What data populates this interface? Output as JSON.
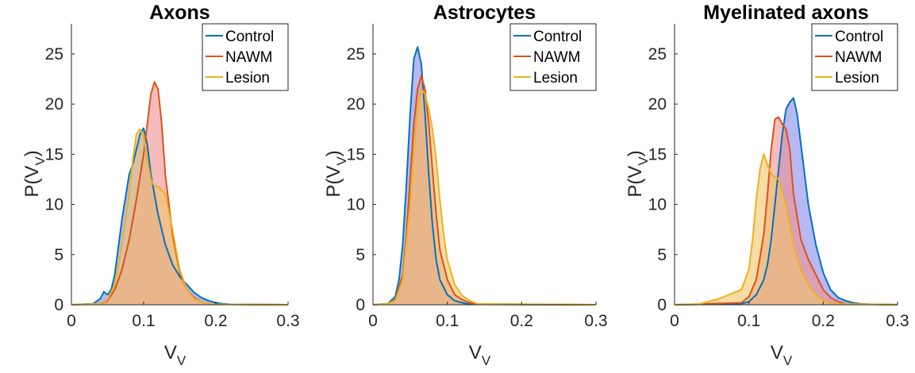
{
  "chart_data": [
    {
      "type": "area",
      "title": "Axons",
      "xlabel": "V",
      "xlabel_sub": "V",
      "ylabel": "P(V",
      "ylabel_sub": "V",
      "ylabel_close": ")",
      "xlim": [
        0,
        0.3
      ],
      "ylim": [
        0,
        28
      ],
      "xticks": [
        "0",
        "0.1",
        "0.2",
        "0.3"
      ],
      "yticks": [
        "0",
        "5",
        "10",
        "15",
        "20",
        "25"
      ],
      "legend_position": "top-right",
      "series": [
        {
          "name": "Control",
          "color": "#0072BD",
          "fill": "#8888ee",
          "x": [
            0,
            0.03,
            0.04,
            0.045,
            0.05,
            0.055,
            0.06,
            0.07,
            0.08,
            0.085,
            0.09,
            0.095,
            0.1,
            0.105,
            0.11,
            0.12,
            0.13,
            0.14,
            0.15,
            0.16,
            0.17,
            0.18,
            0.19,
            0.2,
            0.21,
            0.22,
            0.3
          ],
          "y": [
            0,
            0.1,
            0.6,
            1.3,
            1.0,
            1.5,
            3.0,
            8.5,
            13.0,
            14.0,
            15.5,
            17.0,
            17.6,
            16.0,
            13.0,
            9.0,
            6.0,
            4.0,
            2.8,
            2.0,
            1.2,
            0.7,
            0.4,
            0.2,
            0.1,
            0.05,
            0
          ]
        },
        {
          "name": "NAWM",
          "color": "#D95319",
          "fill": "#f08f8f",
          "x": [
            0,
            0.04,
            0.05,
            0.06,
            0.07,
            0.08,
            0.09,
            0.1,
            0.105,
            0.11,
            0.115,
            0.12,
            0.125,
            0.13,
            0.14,
            0.15,
            0.16,
            0.17,
            0.18,
            0.19,
            0.2,
            0.3
          ],
          "y": [
            0,
            0.1,
            0.4,
            1.5,
            3.5,
            6.5,
            10.5,
            15.0,
            18.0,
            21.0,
            22.2,
            21.5,
            18.0,
            13.0,
            7.0,
            3.2,
            1.5,
            0.7,
            0.3,
            0.1,
            0.05,
            0
          ]
        },
        {
          "name": "Lesion",
          "color": "#EDB120",
          "fill": "#f2c56a",
          "x": [
            0,
            0.04,
            0.05,
            0.06,
            0.07,
            0.08,
            0.085,
            0.09,
            0.095,
            0.1,
            0.105,
            0.11,
            0.115,
            0.12,
            0.13,
            0.14,
            0.15,
            0.16,
            0.17,
            0.18,
            0.19,
            0.2,
            0.3
          ],
          "y": [
            0,
            0.1,
            0.5,
            2.0,
            6.0,
            11.0,
            14.5,
            17.0,
            17.5,
            16.8,
            14.5,
            12.5,
            11.8,
            11.8,
            11.0,
            7.5,
            3.5,
            1.5,
            0.6,
            0.3,
            0.1,
            0.05,
            0
          ]
        }
      ]
    },
    {
      "type": "area",
      "title": "Astrocytes",
      "xlabel": "V",
      "xlabel_sub": "V",
      "ylabel": "P(V",
      "ylabel_sub": "V",
      "ylabel_close": ")",
      "xlim": [
        0,
        0.3
      ],
      "ylim": [
        0,
        28
      ],
      "xticks": [
        "0",
        "0.1",
        "0.2",
        "0.3"
      ],
      "yticks": [
        "0",
        "5",
        "10",
        "15",
        "20",
        "25"
      ],
      "legend_position": "top-right",
      "series": [
        {
          "name": "Control",
          "color": "#0072BD",
          "fill": "#8888ee",
          "x": [
            0,
            0.02,
            0.03,
            0.035,
            0.04,
            0.045,
            0.05,
            0.055,
            0.06,
            0.065,
            0.07,
            0.075,
            0.08,
            0.085,
            0.09,
            0.1,
            0.11,
            0.12,
            0.13,
            0.3
          ],
          "y": [
            0,
            0.1,
            0.8,
            2.5,
            6.0,
            12.0,
            19.0,
            24.5,
            25.7,
            24.0,
            19.0,
            13.0,
            8.0,
            4.5,
            2.5,
            1.0,
            0.4,
            0.2,
            0.05,
            0
          ]
        },
        {
          "name": "NAWM",
          "color": "#D95319",
          "fill": "#f08f8f",
          "x": [
            0,
            0.02,
            0.03,
            0.04,
            0.045,
            0.05,
            0.055,
            0.06,
            0.065,
            0.07,
            0.075,
            0.08,
            0.085,
            0.09,
            0.1,
            0.11,
            0.12,
            0.13,
            0.14,
            0.3
          ],
          "y": [
            0,
            0.1,
            0.5,
            3.0,
            7.0,
            12.5,
            18.0,
            21.5,
            22.8,
            21.5,
            18.0,
            13.5,
            9.0,
            5.5,
            2.5,
            1.0,
            0.5,
            0.2,
            0.05,
            0
          ]
        },
        {
          "name": "Lesion",
          "color": "#EDB120",
          "fill": "#f2c56a",
          "x": [
            0,
            0.02,
            0.03,
            0.04,
            0.05,
            0.055,
            0.06,
            0.065,
            0.07,
            0.075,
            0.08,
            0.085,
            0.09,
            0.095,
            0.1,
            0.11,
            0.12,
            0.13,
            0.14,
            0.3
          ],
          "y": [
            0,
            0.1,
            0.4,
            2.5,
            10.0,
            15.5,
            19.5,
            21.5,
            21.0,
            19.5,
            17.5,
            14.5,
            10.5,
            7.0,
            4.5,
            2.0,
            0.9,
            0.4,
            0.1,
            0
          ]
        }
      ]
    },
    {
      "type": "area",
      "title": "Myelinated axons",
      "xlabel": "V",
      "xlabel_sub": "V",
      "ylabel": "P(V",
      "ylabel_sub": "V",
      "ylabel_close": ")",
      "xlim": [
        0,
        0.3
      ],
      "ylim": [
        0,
        28
      ],
      "xticks": [
        "0",
        "0.1",
        "0.2",
        "0.3"
      ],
      "yticks": [
        "0",
        "5",
        "10",
        "15",
        "20",
        "25"
      ],
      "legend_position": "top-right",
      "series": [
        {
          "name": "Control",
          "color": "#0072BD",
          "fill": "#8888ee",
          "x": [
            0,
            0.09,
            0.1,
            0.11,
            0.12,
            0.125,
            0.13,
            0.135,
            0.14,
            0.145,
            0.15,
            0.155,
            0.16,
            0.165,
            0.17,
            0.175,
            0.18,
            0.19,
            0.2,
            0.21,
            0.22,
            0.23,
            0.24,
            0.25,
            0.26,
            0.3
          ],
          "y": [
            0,
            0.1,
            0.3,
            1.0,
            2.5,
            4.0,
            6.5,
            10.0,
            13.5,
            17.0,
            19.5,
            20.2,
            20.6,
            19.0,
            16.0,
            13.0,
            10.0,
            6.0,
            3.2,
            1.5,
            0.7,
            0.4,
            0.2,
            0.1,
            0.05,
            0
          ]
        },
        {
          "name": "NAWM",
          "color": "#D95319",
          "fill": "#f08f8f",
          "x": [
            0,
            0.09,
            0.1,
            0.11,
            0.12,
            0.125,
            0.13,
            0.135,
            0.14,
            0.145,
            0.15,
            0.155,
            0.16,
            0.17,
            0.18,
            0.19,
            0.2,
            0.21,
            0.22,
            0.23,
            0.3
          ],
          "y": [
            0,
            0.2,
            0.8,
            2.5,
            7.0,
            11.0,
            15.5,
            18.5,
            18.7,
            18.0,
            17.5,
            15.5,
            11.0,
            6.5,
            4.5,
            3.0,
            1.5,
            0.7,
            0.3,
            0.1,
            0
          ]
        },
        {
          "name": "Lesion",
          "color": "#EDB120",
          "fill": "#f2c56a",
          "x": [
            0,
            0.03,
            0.04,
            0.05,
            0.06,
            0.07,
            0.08,
            0.09,
            0.1,
            0.105,
            0.11,
            0.115,
            0.12,
            0.125,
            0.13,
            0.14,
            0.15,
            0.16,
            0.17,
            0.18,
            0.19,
            0.2,
            0.21,
            0.3
          ],
          "y": [
            0,
            0.05,
            0.2,
            0.4,
            0.6,
            0.9,
            1.2,
            1.5,
            3.5,
            6.5,
            10.5,
            13.5,
            15.0,
            14.0,
            13.0,
            12.5,
            10.0,
            6.0,
            3.5,
            2.0,
            1.0,
            0.4,
            0.1,
            0
          ]
        }
      ]
    }
  ]
}
